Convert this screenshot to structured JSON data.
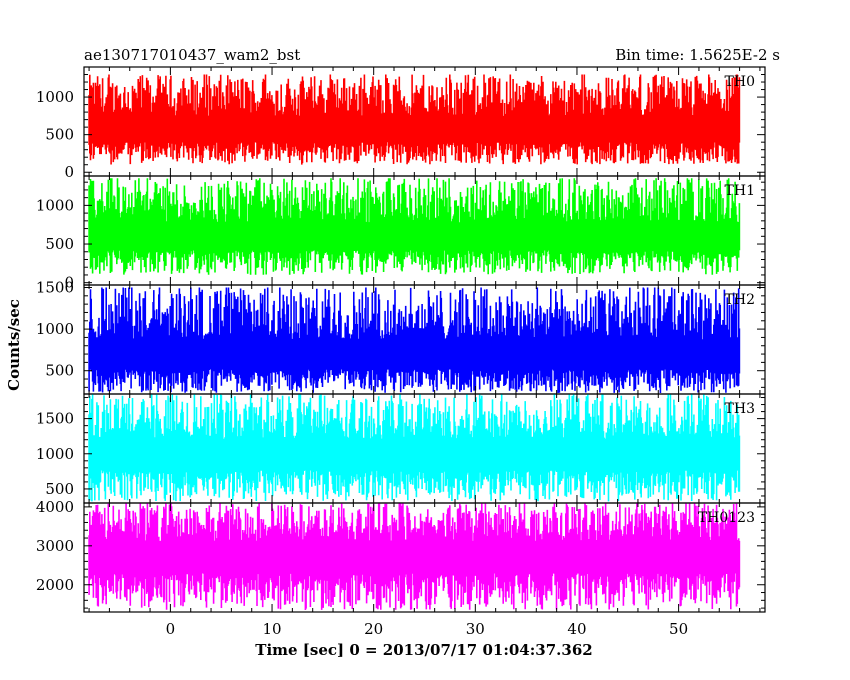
{
  "header": {
    "title": "ae130717010437_wam2_bst",
    "bin_time": "Bin time: 1.5625E-2 s"
  },
  "chart_data": {
    "type": "line",
    "xlabel": "Time [sec] 0 = 2013/07/17 01:04:37.362",
    "ylabel": "Counts/sec",
    "xlim": [
      -8.5,
      58.5
    ],
    "x_ticks": [
      0,
      10,
      20,
      30,
      40,
      50
    ],
    "x_tick_labels": [
      "0",
      "10",
      "20",
      "30",
      "40",
      "50"
    ],
    "data_range": [
      -8.0,
      56.0
    ],
    "bin_time_sec": 0.015625,
    "grid": false,
    "panels": [
      {
        "name": "TH0",
        "color": "#ff0000",
        "ylim": [
          -50,
          1400
        ],
        "y_ticks": [
          0,
          500,
          1000
        ],
        "y_tick_labels": [
          "0",
          "500",
          "1000"
        ],
        "mean": 560,
        "min": 100,
        "max": 1300
      },
      {
        "name": "TH1",
        "color": "#00ff00",
        "ylim": [
          -30,
          1380
        ],
        "y_ticks": [
          0,
          500,
          1000
        ],
        "y_tick_labels": [
          "0",
          "500",
          "1000"
        ],
        "mean": 590,
        "min": 100,
        "max": 1350
      },
      {
        "name": "TH2",
        "color": "#0000ff",
        "ylim": [
          220,
          1530
        ],
        "y_ticks": [
          500,
          1000,
          1500
        ],
        "y_tick_labels": [
          "500",
          "1000",
          "1500"
        ],
        "mean": 670,
        "min": 230,
        "max": 1500
      },
      {
        "name": "TH3",
        "color": "#00ffff",
        "ylim": [
          300,
          1850
        ],
        "y_ticks": [
          500,
          1000,
          1500
        ],
        "y_tick_labels": [
          "500",
          "1000",
          "1500"
        ],
        "mean": 1000,
        "min": 320,
        "max": 1850
      },
      {
        "name": "TH0123",
        "color": "#ff00ff",
        "ylim": [
          1300,
          4100
        ],
        "y_ticks": [
          2000,
          3000,
          4000
        ],
        "y_tick_labels": [
          "2000",
          "3000",
          "4000"
        ],
        "mean": 2800,
        "min": 1350,
        "max": 4100
      }
    ]
  }
}
